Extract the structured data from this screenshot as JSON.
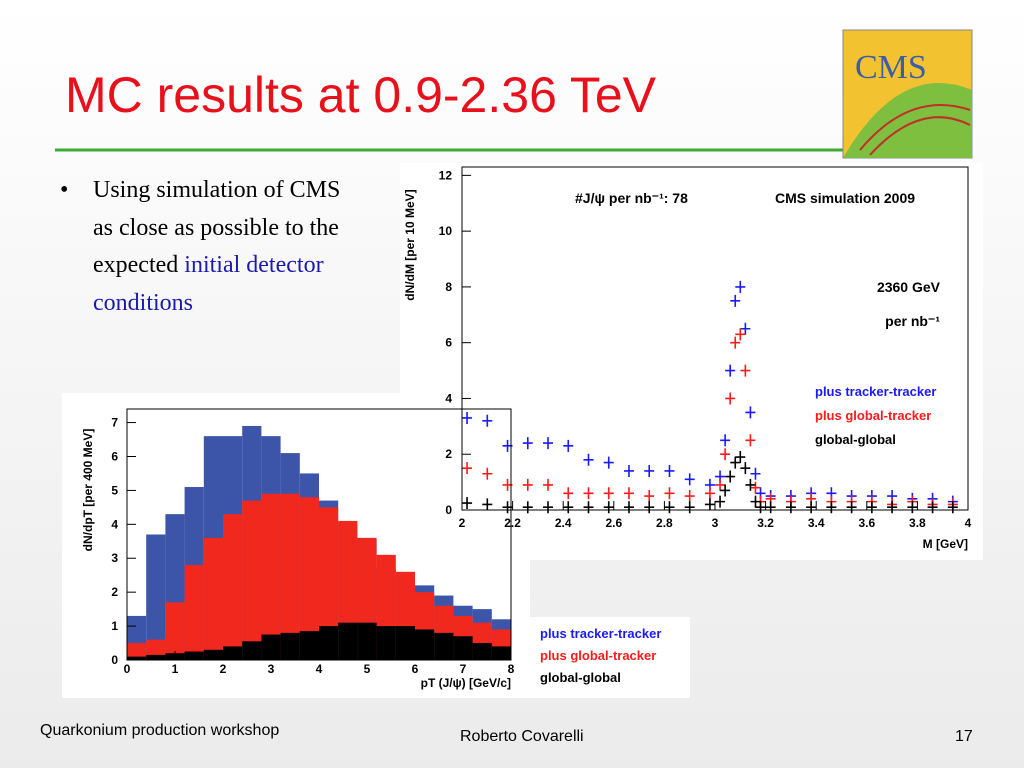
{
  "slide": {
    "title": "MC results at 0.9-2.36 TeV",
    "logo": "CMS",
    "bullet": {
      "text": "Using simulation of CMS as close as possible to the expected",
      "highlight": "initial detector conditions"
    },
    "footer": {
      "left": "Quarkonium production workshop",
      "center": "Roberto Covarelli",
      "page": "17"
    }
  },
  "chart_data": [
    {
      "type": "scatter",
      "marker": "+",
      "annotations": [
        "#J/ψ per nb⁻¹:  78",
        "CMS simulation 2009",
        "2360 GeV",
        "per nb⁻¹"
      ],
      "xlabel": "M [GeV]",
      "ylabel": "dN/dM [per 10 MeV]",
      "xlim": [
        2,
        4
      ],
      "ylim": [
        0,
        12.3
      ],
      "xticks": [
        2,
        2.2,
        2.4,
        2.6,
        2.8,
        3,
        3.2,
        3.4,
        3.6,
        3.8,
        4
      ],
      "yticks": [
        0,
        2,
        4,
        6,
        8,
        10,
        12
      ],
      "x": [
        2.02,
        2.1,
        2.18,
        2.26,
        2.34,
        2.42,
        2.5,
        2.58,
        2.66,
        2.74,
        2.82,
        2.9,
        2.98,
        3.02,
        3.04,
        3.06,
        3.08,
        3.1,
        3.12,
        3.14,
        3.16,
        3.18,
        3.22,
        3.3,
        3.38,
        3.46,
        3.54,
        3.62,
        3.7,
        3.78,
        3.86,
        3.94
      ],
      "series": [
        {
          "name": "plus tracker-tracker",
          "color": "#1a1aff",
          "values": [
            3.3,
            3.2,
            2.3,
            2.4,
            2.4,
            2.3,
            1.8,
            1.7,
            1.4,
            1.4,
            1.4,
            1.1,
            0.9,
            1.2,
            2.5,
            5.0,
            7.5,
            8.0,
            6.5,
            3.5,
            1.3,
            0.6,
            0.5,
            0.5,
            0.6,
            0.6,
            0.5,
            0.5,
            0.5,
            0.4,
            0.4,
            0.3
          ]
        },
        {
          "name": "plus global-tracker",
          "color": "#ff1a1a",
          "values": [
            1.5,
            1.3,
            0.9,
            0.9,
            0.9,
            0.6,
            0.6,
            0.6,
            0.6,
            0.5,
            0.6,
            0.5,
            0.6,
            0.9,
            2.0,
            4.0,
            6.0,
            6.3,
            5.0,
            2.5,
            0.8,
            0.3,
            0.4,
            0.3,
            0.4,
            0.3,
            0.3,
            0.3,
            0.2,
            0.3,
            0.2,
            0.2
          ]
        },
        {
          "name": "global-global",
          "color": "#000000",
          "values": [
            0.25,
            0.2,
            0.1,
            0.1,
            0.1,
            0.1,
            0.1,
            0.1,
            0.1,
            0.1,
            0.1,
            0.1,
            0.2,
            0.3,
            0.7,
            1.2,
            1.7,
            1.9,
            1.5,
            0.9,
            0.3,
            0.1,
            0.1,
            0.1,
            0.1,
            0.1,
            0.1,
            0.1,
            0.1,
            0.1,
            0.1,
            0.1
          ]
        }
      ]
    },
    {
      "type": "histogram",
      "xlabel": "pT (J/ψ) [GeV/c]",
      "ylabel": "dN/dpT [per 400 MeV]",
      "xlim": [
        0,
        8
      ],
      "ylim": [
        0,
        7.4
      ],
      "xticks": [
        0,
        1,
        2,
        3,
        4,
        5,
        6,
        7,
        8
      ],
      "yticks": [
        0,
        1,
        2,
        3,
        4,
        5,
        6,
        7
      ],
      "bins": [
        0,
        0.4,
        0.8,
        1.2,
        1.6,
        2,
        2.4,
        2.8,
        3.2,
        3.6,
        4,
        4.4,
        4.8,
        5.2,
        5.6,
        6,
        6.4,
        6.8,
        7.2,
        7.6,
        8
      ],
      "series": [
        {
          "name": "plus tracker-tracker",
          "color": "#3d55a8",
          "values": [
            1.3,
            3.7,
            4.3,
            5.1,
            6.6,
            6.6,
            6.9,
            6.6,
            6.1,
            5.5,
            4.7,
            4.0,
            3.5,
            2.7,
            2.4,
            2.2,
            1.9,
            1.6,
            1.5,
            1.2
          ]
        },
        {
          "name": "plus global-tracker",
          "color": "#f0281e",
          "values": [
            0.5,
            0.6,
            1.7,
            2.8,
            3.6,
            4.3,
            4.7,
            4.9,
            4.9,
            4.8,
            4.5,
            4.1,
            3.6,
            3.1,
            2.6,
            2.0,
            1.6,
            1.3,
            1.1,
            0.9
          ]
        },
        {
          "name": "global-global",
          "color": "#000000",
          "values": [
            0.1,
            0.15,
            0.2,
            0.25,
            0.3,
            0.4,
            0.55,
            0.75,
            0.8,
            0.85,
            1.0,
            1.1,
            1.1,
            1.0,
            1.0,
            0.9,
            0.8,
            0.7,
            0.5,
            0.4
          ]
        }
      ]
    }
  ]
}
